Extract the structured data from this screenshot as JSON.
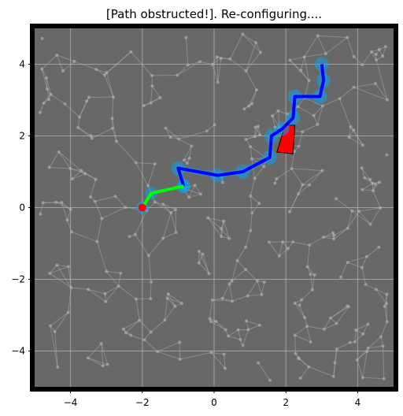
{
  "chart_data": {
    "type": "scatter",
    "title": "[Path obstructed!]. Re-configuring....",
    "xlim": [
      -5,
      5
    ],
    "ylim": [
      -5,
      5
    ],
    "xticks": [
      -4,
      -2,
      0,
      2,
      4
    ],
    "yticks": [
      -4,
      -2,
      0,
      2,
      4
    ],
    "x_tick_labels": [
      "−4",
      "−2",
      "0",
      "2",
      "4"
    ],
    "y_tick_labels": [
      "−4",
      "−2",
      "0",
      "2",
      "4"
    ],
    "grid": true,
    "background": "#686868",
    "frame_color": "#000000",
    "roadmap": {
      "color": "#b4b4b4",
      "node_count": 300,
      "description_seed": 7
    },
    "series": [
      {
        "kind": "traveled-path",
        "color": "#00ff00",
        "points": [
          [
            -2.0,
            0.0
          ],
          [
            -1.75,
            0.4
          ],
          [
            -0.85,
            0.6
          ]
        ]
      },
      {
        "kind": "planned-path",
        "color": "#0000ff",
        "glow": "#00aaff",
        "points": [
          [
            -0.85,
            0.6
          ],
          [
            -1.0,
            1.1
          ],
          [
            0.1,
            0.9
          ],
          [
            0.8,
            1.0
          ],
          [
            1.55,
            1.4
          ],
          [
            1.6,
            2.0
          ],
          [
            1.9,
            2.2
          ],
          [
            2.2,
            2.5
          ],
          [
            2.25,
            3.1
          ],
          [
            2.95,
            3.1
          ],
          [
            3.05,
            3.55
          ],
          [
            3.0,
            4.0
          ]
        ]
      }
    ],
    "start": {
      "x": -2.0,
      "y": 0.0,
      "color": "#ff0000"
    },
    "obstacle": {
      "color": "#ff0000",
      "corners": [
        [
          1.75,
          1.55
        ],
        [
          2.2,
          1.5
        ],
        [
          2.25,
          2.3
        ],
        [
          1.98,
          2.3
        ]
      ]
    }
  }
}
